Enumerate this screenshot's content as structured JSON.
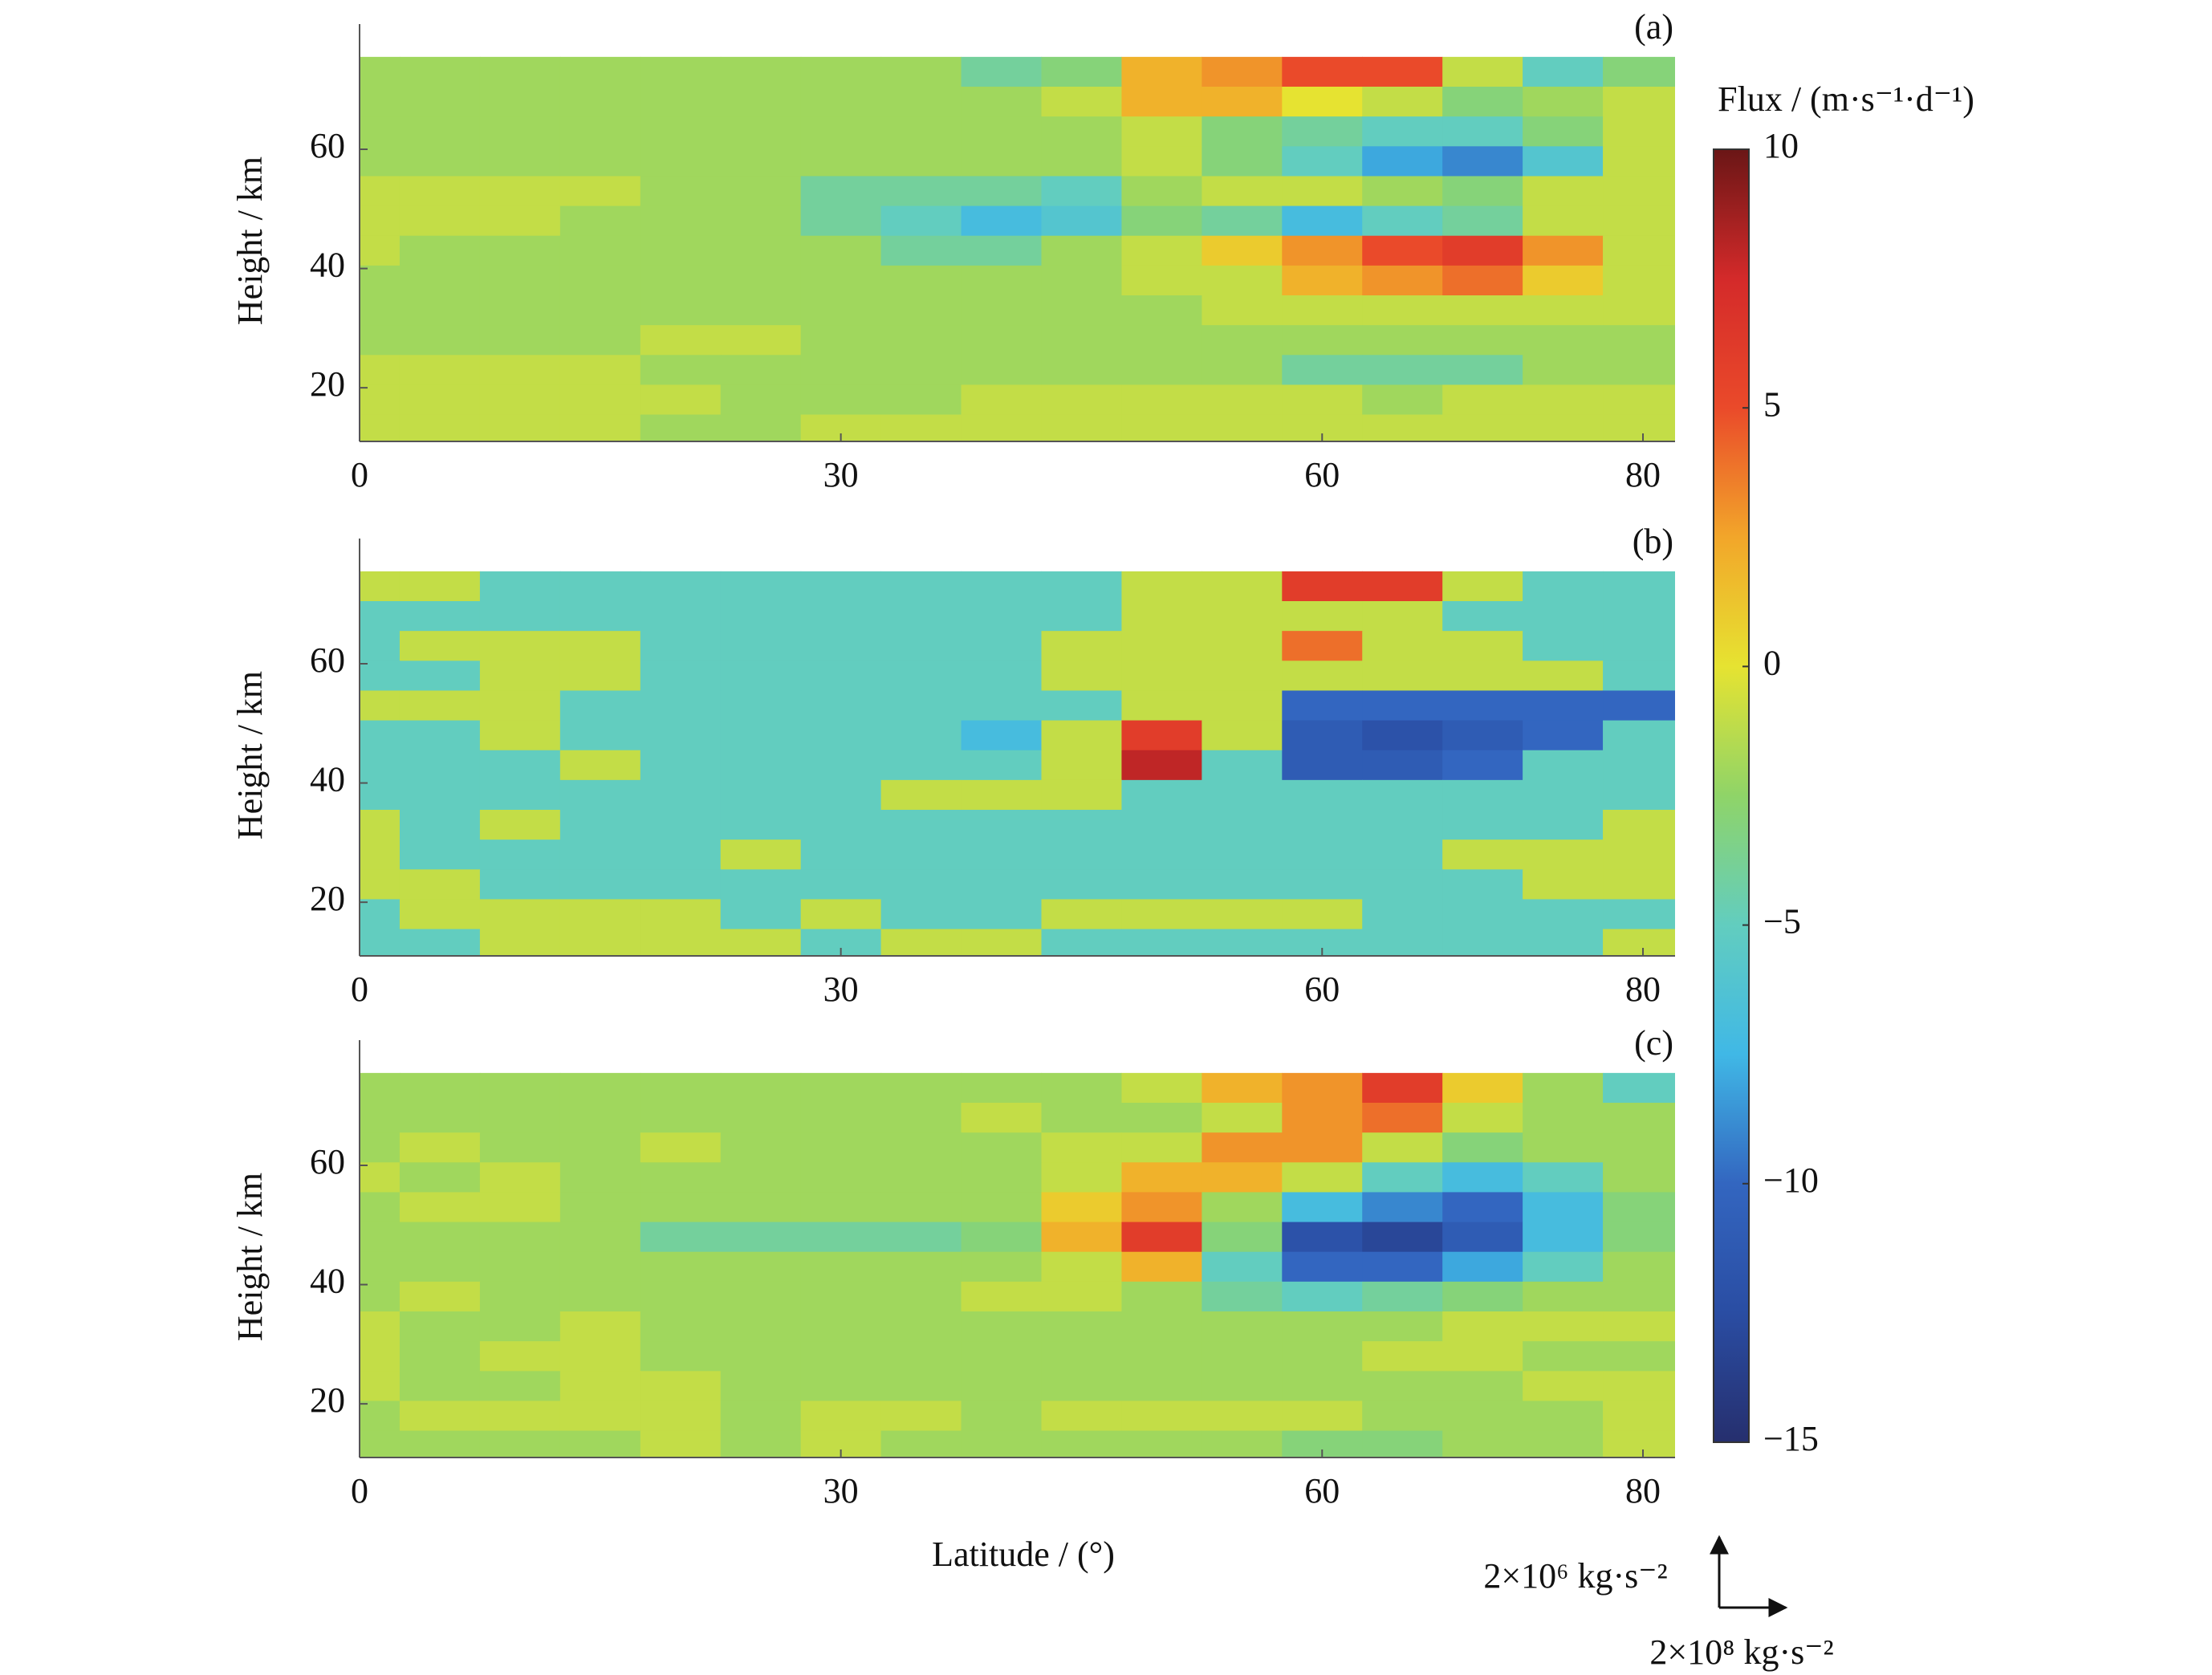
{
  "chart_data": [
    {
      "type": "contour",
      "panel_label": "(a)",
      "ylabel": "Height / km",
      "x": [
        0,
        5,
        10,
        15,
        20,
        25,
        30,
        35,
        40,
        45,
        50,
        55,
        60,
        65,
        70,
        75,
        80
      ],
      "y": [
        73,
        68,
        63,
        58,
        53,
        48,
        43,
        38,
        33,
        28,
        23,
        18,
        13
      ],
      "z": [
        [
          -2,
          -2,
          -2,
          -2,
          -2,
          -2,
          -2,
          -2,
          -4,
          -3,
          2,
          3,
          5,
          5,
          -1,
          -5,
          -3
        ],
        [
          -2,
          -2,
          -2,
          -2,
          -2,
          -2,
          -2,
          -2,
          -2,
          -1,
          2,
          2,
          0,
          -1,
          -3,
          -2,
          -1
        ],
        [
          -2,
          -2,
          -2,
          -2,
          -2,
          -2,
          -2,
          -2,
          -2,
          -2,
          -1,
          -3,
          -4,
          -5,
          -5,
          -3,
          -1
        ],
        [
          -2,
          -2,
          -2,
          -2,
          -2,
          -2,
          -2,
          -2,
          -2,
          -2,
          -1,
          -3,
          -5,
          -8,
          -9,
          -6,
          -1
        ],
        [
          -1,
          -1,
          -1,
          -1,
          -2,
          -2,
          -4,
          -4,
          -4,
          -5,
          -2,
          -1,
          -1,
          -2,
          -3,
          -1,
          -1
        ],
        [
          -1,
          -1,
          -1,
          -2,
          -2,
          -2,
          -4,
          -5,
          -7,
          -6,
          -3,
          -4,
          -7,
          -5,
          -4,
          -1,
          -1
        ],
        [
          -1,
          -2,
          -2,
          -2,
          -2,
          -2,
          -2,
          -4,
          -4,
          -2,
          -1,
          1,
          3,
          5,
          6,
          3,
          -1
        ],
        [
          -2,
          -2,
          -2,
          -2,
          -2,
          -2,
          -2,
          -2,
          -2,
          -2,
          -1,
          -1,
          2,
          3,
          4,
          1,
          -1
        ],
        [
          -2,
          -2,
          -2,
          -2,
          -2,
          -2,
          -2,
          -2,
          -2,
          -2,
          -2,
          -1,
          -1,
          -1,
          -1,
          -1,
          -1
        ],
        [
          -2,
          -2,
          -2,
          -2,
          -1,
          -1,
          -2,
          -2,
          -2,
          -2,
          -2,
          -2,
          -2,
          -2,
          -2,
          -2,
          -2
        ],
        [
          -1,
          -1,
          -1,
          -1,
          -2,
          -2,
          -2,
          -2,
          -2,
          -2,
          -2,
          -2,
          -4,
          -4,
          -4,
          -2,
          -2
        ],
        [
          -1,
          -1,
          -1,
          -1,
          -1,
          -2,
          -2,
          -2,
          -1,
          -1,
          -1,
          -1,
          -1,
          -2,
          -1,
          -1,
          -1
        ],
        [
          -1,
          -1,
          -1,
          -1,
          -2,
          -2,
          -1,
          -1,
          -1,
          -1,
          -1,
          -1,
          -1,
          -1,
          -1,
          -1,
          -1
        ]
      ],
      "xlim": [
        0,
        82
      ],
      "ylim": [
        11,
        81
      ],
      "xticks": [
        0,
        30,
        60,
        80
      ],
      "yticks": [
        20,
        40,
        60
      ]
    },
    {
      "type": "contour",
      "panel_label": "(b)",
      "ylabel": "Height / km",
      "x": [
        0,
        5,
        10,
        15,
        20,
        25,
        30,
        35,
        40,
        45,
        50,
        55,
        60,
        65,
        70,
        75,
        80
      ],
      "y": [
        73,
        68,
        63,
        58,
        53,
        48,
        43,
        38,
        33,
        28,
        23,
        18,
        13
      ],
      "z": [
        [
          -1,
          -1,
          -5,
          -5,
          -5,
          -5,
          -5,
          -5,
          -5,
          -5,
          -1,
          -1,
          6,
          6,
          -1,
          -5,
          -5
        ],
        [
          -5,
          -5,
          -5,
          -5,
          -5,
          -5,
          -5,
          -5,
          -5,
          -5,
          -1,
          -1,
          -1,
          -1,
          -5,
          -5,
          -5
        ],
        [
          -5,
          -1,
          -1,
          -1,
          -5,
          -5,
          -5,
          -5,
          -5,
          -1,
          -1,
          -1,
          4,
          -1,
          -1,
          -5,
          -5
        ],
        [
          -5,
          -5,
          -1,
          -1,
          -5,
          -5,
          -5,
          -5,
          -5,
          -1,
          -1,
          -1,
          -1,
          -1,
          -1,
          -1,
          -5
        ],
        [
          -1,
          -1,
          -1,
          -5,
          -5,
          -5,
          -5,
          -5,
          -5,
          -5,
          -1,
          -1,
          -10,
          -10,
          -10,
          -10,
          -10
        ],
        [
          -5,
          -5,
          -1,
          -5,
          -5,
          -5,
          -5,
          -5,
          -7,
          -1,
          6,
          -1,
          -11,
          -12,
          -11,
          -10,
          -5
        ],
        [
          -5,
          -5,
          -5,
          -1,
          -5,
          -5,
          -5,
          -5,
          -5,
          -1,
          8,
          -5,
          -11,
          -11,
          -10,
          -5,
          -5
        ],
        [
          -5,
          -5,
          -5,
          -5,
          -5,
          -5,
          -5,
          -1,
          -1,
          -1,
          -5,
          -5,
          -5,
          -5,
          -5,
          -5,
          -5
        ],
        [
          -1,
          -5,
          -1,
          -5,
          -5,
          -5,
          -5,
          -5,
          -5,
          -5,
          -5,
          -5,
          -5,
          -5,
          -5,
          -5,
          -1
        ],
        [
          -1,
          -5,
          -5,
          -5,
          -5,
          -1,
          -5,
          -5,
          -5,
          -5,
          -5,
          -5,
          -5,
          -5,
          -1,
          -1,
          -1
        ],
        [
          -1,
          -1,
          -5,
          -5,
          -5,
          -5,
          -5,
          -5,
          -5,
          -5,
          -5,
          -5,
          -5,
          -5,
          -5,
          -1,
          -1
        ],
        [
          -5,
          -1,
          -1,
          -1,
          -1,
          -5,
          -1,
          -5,
          -5,
          -1,
          -1,
          -1,
          -1,
          -5,
          -5,
          -5,
          -5
        ],
        [
          -5,
          -5,
          -1,
          -1,
          -1,
          -1,
          -5,
          -1,
          -1,
          -5,
          -5,
          -5,
          -5,
          -5,
          -5,
          -5,
          -1
        ]
      ],
      "xlim": [
        0,
        82
      ],
      "ylim": [
        11,
        81
      ],
      "xticks": [
        0,
        30,
        60,
        80
      ],
      "yticks": [
        20,
        40,
        60
      ]
    },
    {
      "type": "contour",
      "panel_label": "(c)",
      "ylabel": "Height / km",
      "xlabel": "Latitude / (°)",
      "x": [
        0,
        5,
        10,
        15,
        20,
        25,
        30,
        35,
        40,
        45,
        50,
        55,
        60,
        65,
        70,
        75,
        80
      ],
      "y": [
        73,
        68,
        63,
        58,
        53,
        48,
        43,
        38,
        33,
        28,
        23,
        18,
        13
      ],
      "z": [
        [
          -2,
          -2,
          -2,
          -2,
          -2,
          -2,
          -2,
          -2,
          -2,
          -2,
          -1,
          2,
          3,
          6,
          1,
          -2,
          -5
        ],
        [
          -2,
          -2,
          -2,
          -2,
          -2,
          -2,
          -2,
          -2,
          -1,
          -2,
          -2,
          -1,
          3,
          4,
          -1,
          -2,
          -2
        ],
        [
          -2,
          -1,
          -2,
          -2,
          -1,
          -2,
          -2,
          -2,
          -2,
          -1,
          -1,
          3,
          3,
          -1,
          -3,
          -2,
          -2
        ],
        [
          -1,
          -2,
          -1,
          -2,
          -2,
          -2,
          -2,
          -2,
          -2,
          -1,
          2,
          2,
          -1,
          -5,
          -7,
          -5,
          -2
        ],
        [
          -2,
          -1,
          -1,
          -2,
          -2,
          -2,
          -2,
          -2,
          -2,
          1,
          3,
          -2,
          -7,
          -9,
          -10,
          -7,
          -3
        ],
        [
          -2,
          -2,
          -2,
          -2,
          -4,
          -4,
          -4,
          -4,
          -3,
          2,
          6,
          -3,
          -12,
          -13,
          -11,
          -7,
          -3
        ],
        [
          -2,
          -2,
          -2,
          -2,
          -2,
          -2,
          -2,
          -2,
          -2,
          -1,
          2,
          -5,
          -10,
          -10,
          -8,
          -5,
          -2
        ],
        [
          -2,
          -1,
          -2,
          -2,
          -2,
          -2,
          -2,
          -2,
          -1,
          -1,
          -2,
          -4,
          -5,
          -4,
          -3,
          -2,
          -2
        ],
        [
          -1,
          -2,
          -2,
          -1,
          -2,
          -2,
          -2,
          -2,
          -2,
          -2,
          -2,
          -2,
          -2,
          -2,
          -1,
          -1,
          -1
        ],
        [
          -1,
          -2,
          -1,
          -1,
          -2,
          -2,
          -2,
          -2,
          -2,
          -2,
          -2,
          -2,
          -2,
          -1,
          -1,
          -2,
          -2
        ],
        [
          -1,
          -2,
          -2,
          -1,
          -1,
          -2,
          -2,
          -2,
          -2,
          -2,
          -2,
          -2,
          -2,
          -2,
          -2,
          -1,
          -1
        ],
        [
          -2,
          -1,
          -1,
          -1,
          -1,
          -2,
          -1,
          -1,
          -2,
          -1,
          -1,
          -1,
          -1,
          -2,
          -2,
          -2,
          -1
        ],
        [
          -2,
          -2,
          -2,
          -2,
          -1,
          -2,
          -1,
          -2,
          -2,
          -2,
          -2,
          -2,
          -3,
          -3,
          -2,
          -2,
          -1
        ]
      ],
      "xlim": [
        0,
        82
      ],
      "ylim": [
        11,
        81
      ],
      "xticks": [
        0,
        30,
        60,
        80
      ],
      "yticks": [
        20,
        40,
        60
      ]
    }
  ],
  "colorbar": {
    "label": "Flux / (m·s⁻¹·d⁻¹)",
    "clim": [
      -15,
      10
    ],
    "ticks": [
      10,
      5,
      0,
      {
        "value": -5,
        "label": "−5"
      },
      {
        "value": -10,
        "label": "−10"
      },
      {
        "value": -15,
        "label": "−15"
      }
    ],
    "colors": [
      "#262f6e",
      "#2a4da3",
      "#3366c0",
      "#40b8e6",
      "#62cdbf",
      "#8fd468",
      "#e6e331",
      "#f2a62a",
      "#ea4a2a",
      "#d42a2a",
      "#6a1616"
    ]
  },
  "vector_scale": {
    "vertical": "2×10⁶ kg·s⁻²",
    "horizontal": "2×10⁸ kg·s⁻²"
  }
}
